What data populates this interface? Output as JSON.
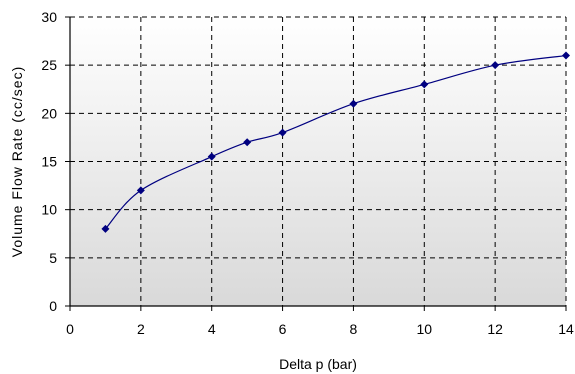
{
  "chart_data": {
    "type": "line",
    "title": "",
    "xlabel": "Delta p (bar)",
    "ylabel": "Volume Flow Rate (cc/sec)",
    "xlim": [
      0,
      14
    ],
    "ylim": [
      0,
      30
    ],
    "x_ticks": [
      0,
      2,
      4,
      6,
      8,
      10,
      12,
      14
    ],
    "y_ticks": [
      0,
      5,
      10,
      15,
      20,
      25,
      30
    ],
    "grid": true,
    "grid_style": "dashed",
    "legend": "none",
    "line_color": "#000080",
    "marker": "diamond",
    "series": [
      {
        "x": [
          1,
          2,
          4,
          5,
          6,
          8,
          10,
          12,
          14
        ],
        "y": [
          8,
          12,
          15.5,
          17,
          18,
          21,
          23,
          25,
          26
        ]
      }
    ]
  }
}
